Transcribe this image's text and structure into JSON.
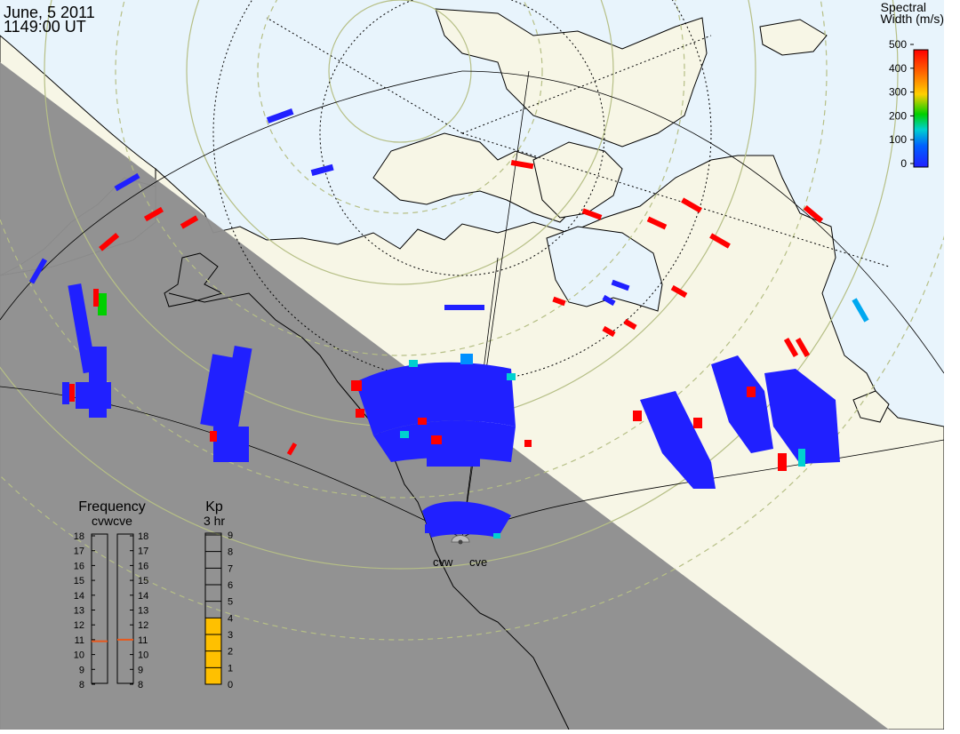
{
  "header": {
    "date": "June, 5 2011",
    "time": "1149:00 UT"
  },
  "colorbar": {
    "title_line1": "Spectral",
    "title_line2": "Width (m/s)",
    "ticks": [
      "500",
      "400",
      "300",
      "200",
      "100",
      "0"
    ],
    "stops": [
      "#ff0000",
      "#ff6a00",
      "#ffd000",
      "#00d000",
      "#00d0d0",
      "#0060ff",
      "#2020ff"
    ]
  },
  "frequency_panel": {
    "title": "Frequency",
    "subtitle": "cvwcve",
    "ticks": [
      "18",
      "17",
      "16",
      "15",
      "14",
      "13",
      "12",
      "11",
      "10",
      "9",
      "8"
    ],
    "radars": [
      {
        "name": "cvw",
        "frequency_mhz": 10.9
      },
      {
        "name": "cve",
        "frequency_mhz": 11.0
      }
    ],
    "marker_color": "#e8581c"
  },
  "kp_panel": {
    "title": "Kp",
    "subtitle": "3 hr",
    "ticks": [
      "9",
      "8",
      "7",
      "6",
      "5",
      "4",
      "3",
      "2",
      "1",
      "0"
    ],
    "kp_value": 4,
    "fill_color": "#ffc000"
  },
  "radar_labels": {
    "west": "cvw",
    "east": "cve"
  },
  "map": {
    "ocean_color": "#e8f4fc",
    "land_color": "#f7f6e6",
    "night_color": "#8e8e8e",
    "grid_color": "#b6bf86",
    "echo_low_color": "#2020ff",
    "echo_high_color": "#ff0000"
  }
}
